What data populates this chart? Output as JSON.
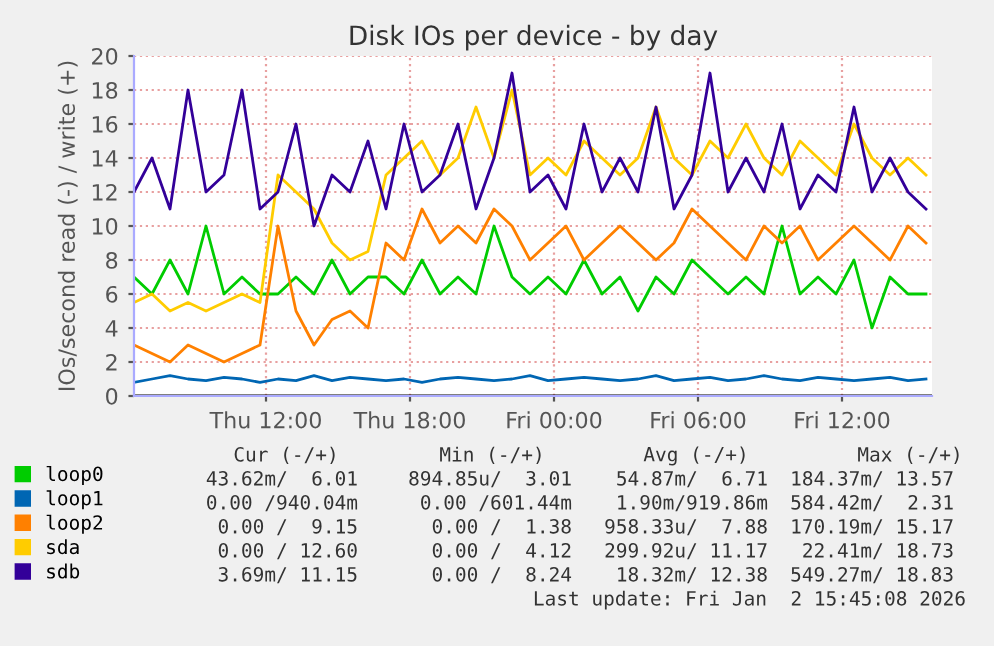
{
  "chart_data": {
    "type": "line",
    "title": "Disk IOs per device - by day",
    "ylabel": "IOs/second read (-) / write (+)",
    "x": [
      "2026-01-01T06:30",
      "2026-01-01T07:15",
      "2026-01-01T08:00",
      "2026-01-01T08:45",
      "2026-01-01T09:30",
      "2026-01-01T10:15",
      "2026-01-01T11:00",
      "2026-01-01T11:45",
      "2026-01-01T12:30",
      "2026-01-01T13:15",
      "2026-01-01T14:00",
      "2026-01-01T14:45",
      "2026-01-01T15:30",
      "2026-01-01T16:15",
      "2026-01-01T17:00",
      "2026-01-01T17:45",
      "2026-01-01T18:30",
      "2026-01-01T19:15",
      "2026-01-01T20:00",
      "2026-01-01T20:45",
      "2026-01-01T21:30",
      "2026-01-01T22:15",
      "2026-01-01T23:00",
      "2026-01-01T23:45",
      "2026-01-02T00:30",
      "2026-01-02T01:15",
      "2026-01-02T02:00",
      "2026-01-02T02:45",
      "2026-01-02T03:30",
      "2026-01-02T04:15",
      "2026-01-02T05:00",
      "2026-01-02T05:45",
      "2026-01-02T06:30",
      "2026-01-02T07:15",
      "2026-01-02T08:00",
      "2026-01-02T08:45",
      "2026-01-02T09:30",
      "2026-01-02T10:15",
      "2026-01-02T11:00",
      "2026-01-02T11:45",
      "2026-01-02T12:30",
      "2026-01-02T13:15",
      "2026-01-02T14:00",
      "2026-01-02T14:45",
      "2026-01-02T15:30"
    ],
    "series": [
      {
        "name": "loop0",
        "color": "#00cc00",
        "values": [
          7,
          6,
          8,
          6,
          10,
          6,
          7,
          6,
          6,
          7,
          6,
          8,
          6,
          7,
          7,
          6,
          8,
          6,
          7,
          6,
          10,
          7,
          6,
          7,
          6,
          8,
          6,
          7,
          5,
          7,
          6,
          8,
          7,
          6,
          7,
          6,
          10,
          6,
          7,
          6,
          8,
          4,
          7,
          6,
          6
        ]
      },
      {
        "name": "loop1",
        "color": "#0066b3",
        "values": [
          0.8,
          1,
          1.2,
          1,
          0.9,
          1.1,
          1,
          0.8,
          1,
          0.9,
          1.2,
          0.9,
          1.1,
          1,
          0.9,
          1,
          0.8,
          1,
          1.1,
          1,
          0.9,
          1,
          1.2,
          0.9,
          1,
          1.1,
          1,
          0.9,
          1,
          1.2,
          0.9,
          1,
          1.1,
          0.9,
          1,
          1.2,
          1,
          0.9,
          1.1,
          1,
          0.9,
          1,
          1.1,
          0.9,
          1
        ]
      },
      {
        "name": "loop2",
        "color": "#ff8000",
        "values": [
          3,
          2.5,
          2,
          3,
          2.5,
          2,
          2.5,
          3,
          10,
          5,
          3,
          4.5,
          5,
          4,
          9,
          8,
          11,
          9,
          10,
          9,
          11,
          10,
          8,
          9,
          10,
          8,
          9,
          10,
          9,
          8,
          9,
          11,
          10,
          9,
          8,
          10,
          9,
          10,
          8,
          9,
          10,
          9,
          8,
          10,
          9
        ]
      },
      {
        "name": "sda",
        "color": "#ffcc00",
        "values": [
          5.5,
          6,
          5,
          5.5,
          5,
          5.5,
          6,
          5.5,
          13,
          12,
          11,
          9,
          8,
          8.5,
          13,
          14,
          15,
          13,
          14,
          17,
          14,
          18,
          13,
          14,
          13,
          15,
          14,
          13,
          14,
          17,
          14,
          13,
          15,
          14,
          16,
          14,
          13,
          15,
          14,
          13,
          16,
          14,
          13,
          14,
          13
        ]
      },
      {
        "name": "sdb",
        "color": "#330099",
        "values": [
          12,
          14,
          11,
          18,
          12,
          13,
          18,
          11,
          12,
          16,
          10,
          13,
          12,
          15,
          11,
          16,
          12,
          13,
          16,
          11,
          14,
          19,
          12,
          13,
          11,
          16,
          12,
          14,
          12,
          17,
          11,
          13,
          19,
          12,
          14,
          12,
          16,
          11,
          13,
          12,
          17,
          12,
          14,
          12,
          11
        ]
      }
    ],
    "xlim": [
      "2026-01-01T06:30",
      "2026-01-02T15:45"
    ],
    "xticks": [
      {
        "value": "2026-01-01T12:00",
        "label": "Thu 12:00"
      },
      {
        "value": "2026-01-01T18:00",
        "label": "Thu 18:00"
      },
      {
        "value": "2026-01-02T00:00",
        "label": "Fri 00:00"
      },
      {
        "value": "2026-01-02T06:00",
        "label": "Fri 06:00"
      },
      {
        "value": "2026-01-02T12:00",
        "label": "Fri 12:00"
      }
    ],
    "ylim": [
      0,
      20
    ],
    "yticks": [
      0,
      2,
      4,
      6,
      8,
      10,
      12,
      14,
      16,
      18,
      20
    ],
    "grid": true,
    "legend": "bottom left",
    "marker": "none",
    "line_style": "solid",
    "annotations": [
      "Cur (-/+)",
      "Min (-/+)",
      "Avg (-/+)",
      "Max (-/+)",
      "43.62m/  6.01",
      "894.85u/  3.01",
      "54.87m/  6.71",
      "184.37m/ 13.57",
      "0.00 /940.04m",
      "0.00 /601.44m",
      "1.90m/919.86m",
      "584.42m/  2.31",
      "0.00 /  9.15",
      "0.00 /  1.38",
      "958.33u/  7.88",
      "170.19m/ 15.17",
      "0.00 / 12.60",
      "0.00 /  4.12",
      "299.92u/ 11.17",
      "22.41m/ 18.73",
      "3.69m/ 11.15",
      "0.00 /  8.24",
      "18.32m/ 12.38",
      "549.27m/ 18.83",
      "Last update: Fri Jan  2 15:45:08 2026"
    ]
  }
}
